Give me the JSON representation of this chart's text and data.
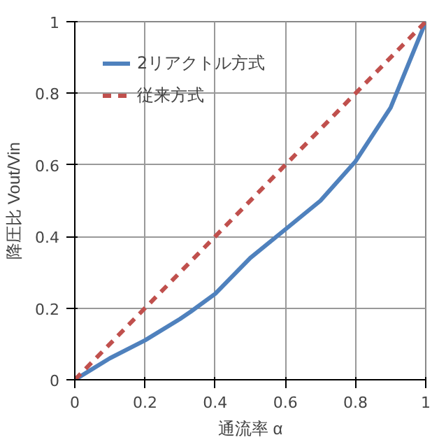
{
  "chart_data": {
    "type": "line",
    "xlabel": "通流率 α",
    "ylabel": "降圧比 Vout/Vin",
    "xlim": [
      0,
      1
    ],
    "ylim": [
      0,
      1
    ],
    "xticks": [
      0,
      0.2,
      0.4,
      0.6,
      0.8,
      1
    ],
    "yticks": [
      0,
      0.2,
      0.4,
      0.6,
      0.8,
      1
    ],
    "grid": true,
    "legend": "top left",
    "series": [
      {
        "name": "2リアクトル方式",
        "color": "#4f81bd",
        "line_style": "solid",
        "x": [
          0,
          0.05,
          0.1,
          0.2,
          0.3,
          0.33,
          0.4,
          0.42,
          0.5,
          0.6,
          0.7,
          0.8,
          0.9,
          1
        ],
        "values": [
          0,
          0.03,
          0.06,
          0.11,
          0.17,
          0.19,
          0.24,
          0.26,
          0.34,
          0.42,
          0.5,
          0.61,
          0.76,
          1
        ]
      },
      {
        "name": "従来方式",
        "color": "#c0504d",
        "line_style": "dashed",
        "x": [
          0,
          1
        ],
        "values": [
          0,
          1
        ]
      }
    ]
  }
}
